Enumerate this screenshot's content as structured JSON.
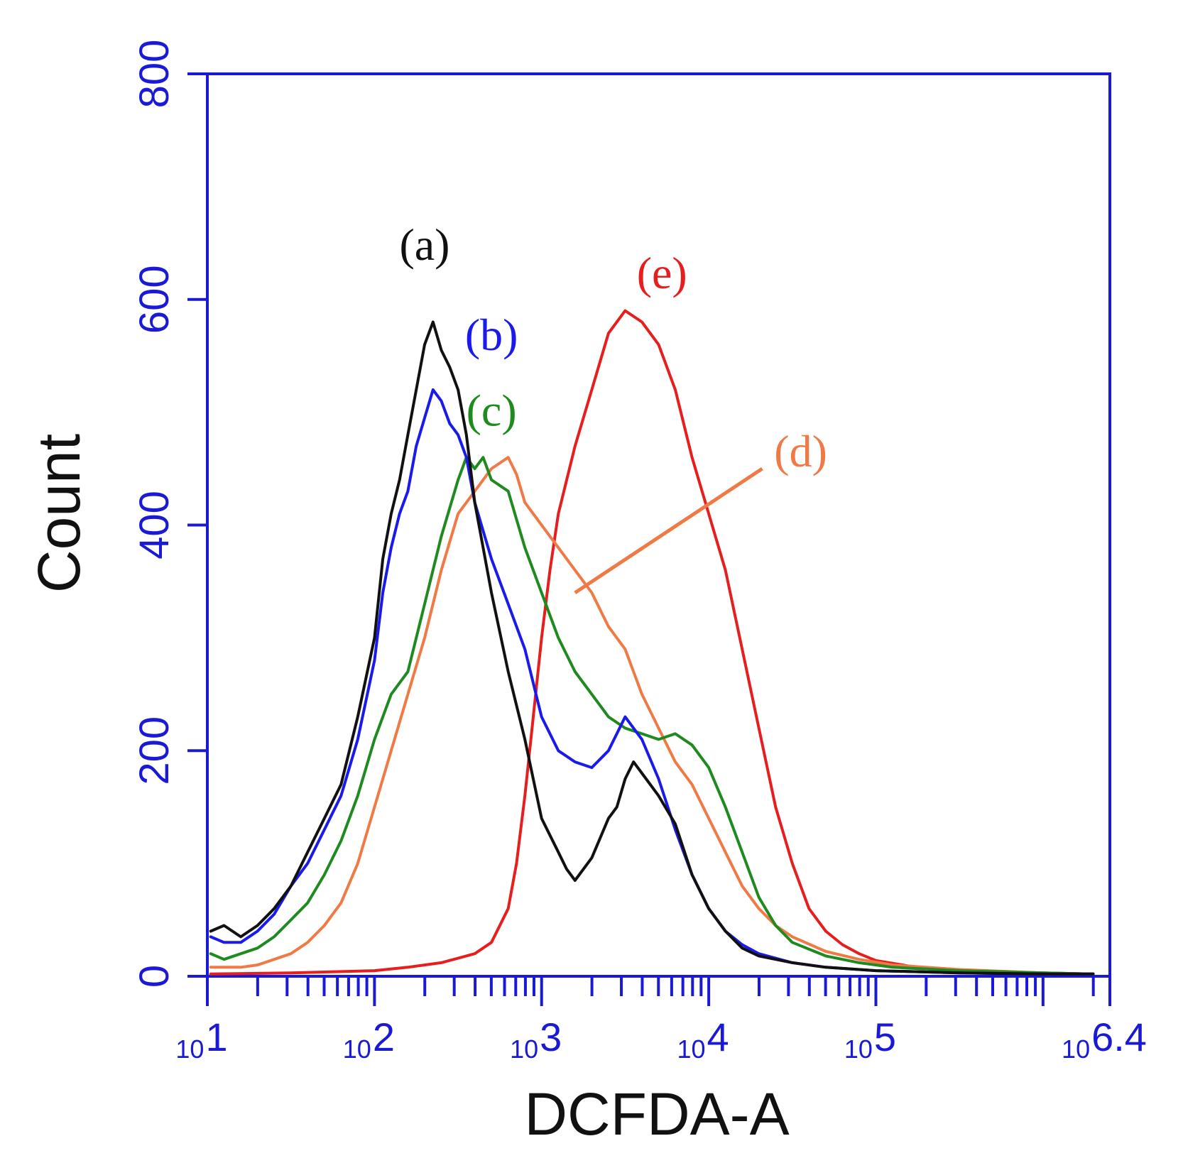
{
  "chart_data": {
    "type": "line",
    "title": "",
    "xlabel": "DCFDA-A",
    "ylabel": "Count",
    "x_scale": "log10",
    "xlim": [
      1,
      6.4
    ],
    "ylim": [
      0,
      800
    ],
    "y_ticks": [
      0,
      200,
      400,
      600,
      800
    ],
    "x_tick_labels": [
      {
        "exp": 1,
        "base": "10",
        "sup": "1"
      },
      {
        "exp": 2,
        "base": "10",
        "sup": "2"
      },
      {
        "exp": 3,
        "base": "10",
        "sup": "3"
      },
      {
        "exp": 4,
        "base": "10",
        "sup": "4"
      },
      {
        "exp": 5,
        "base": "10",
        "sup": "5"
      },
      {
        "exp": 6.4,
        "base": "10",
        "sup": "6.4"
      }
    ],
    "grid": false,
    "frame_color": "#1a1ad6",
    "series": [
      {
        "name": "(a)",
        "color": "#111111",
        "label_pos": {
          "x": 2.3,
          "y": 635
        },
        "points": [
          [
            1.02,
            40
          ],
          [
            1.1,
            45
          ],
          [
            1.2,
            35
          ],
          [
            1.3,
            45
          ],
          [
            1.4,
            60
          ],
          [
            1.5,
            80
          ],
          [
            1.6,
            110
          ],
          [
            1.7,
            140
          ],
          [
            1.8,
            170
          ],
          [
            1.9,
            230
          ],
          [
            2.0,
            300
          ],
          [
            2.05,
            370
          ],
          [
            2.1,
            410
          ],
          [
            2.15,
            440
          ],
          [
            2.2,
            480
          ],
          [
            2.25,
            520
          ],
          [
            2.3,
            560
          ],
          [
            2.35,
            580
          ],
          [
            2.4,
            555
          ],
          [
            2.45,
            540
          ],
          [
            2.5,
            520
          ],
          [
            2.55,
            480
          ],
          [
            2.6,
            420
          ],
          [
            2.7,
            340
          ],
          [
            2.8,
            270
          ],
          [
            2.9,
            210
          ],
          [
            3.0,
            140
          ],
          [
            3.1,
            110
          ],
          [
            3.15,
            95
          ],
          [
            3.2,
            85
          ],
          [
            3.3,
            105
          ],
          [
            3.4,
            140
          ],
          [
            3.45,
            150
          ],
          [
            3.5,
            175
          ],
          [
            3.55,
            190
          ],
          [
            3.6,
            180
          ],
          [
            3.7,
            160
          ],
          [
            3.8,
            135
          ],
          [
            3.9,
            90
          ],
          [
            4.0,
            60
          ],
          [
            4.1,
            40
          ],
          [
            4.2,
            25
          ],
          [
            4.3,
            18
          ],
          [
            4.5,
            12
          ],
          [
            4.7,
            8
          ],
          [
            5.0,
            5
          ],
          [
            5.5,
            3
          ],
          [
            6.0,
            2
          ],
          [
            6.3,
            2
          ]
        ]
      },
      {
        "name": "(b)",
        "color": "#1a1aeb",
        "label_pos": {
          "x": 2.7,
          "y": 555
        },
        "points": [
          [
            1.02,
            35
          ],
          [
            1.1,
            30
          ],
          [
            1.2,
            30
          ],
          [
            1.3,
            40
          ],
          [
            1.4,
            55
          ],
          [
            1.5,
            80
          ],
          [
            1.6,
            100
          ],
          [
            1.7,
            130
          ],
          [
            1.8,
            160
          ],
          [
            1.9,
            210
          ],
          [
            2.0,
            280
          ],
          [
            2.05,
            340
          ],
          [
            2.1,
            380
          ],
          [
            2.15,
            410
          ],
          [
            2.2,
            430
          ],
          [
            2.25,
            470
          ],
          [
            2.3,
            495
          ],
          [
            2.35,
            520
          ],
          [
            2.4,
            510
          ],
          [
            2.45,
            490
          ],
          [
            2.5,
            480
          ],
          [
            2.55,
            460
          ],
          [
            2.6,
            420
          ],
          [
            2.7,
            370
          ],
          [
            2.8,
            330
          ],
          [
            2.9,
            290
          ],
          [
            3.0,
            230
          ],
          [
            3.1,
            200
          ],
          [
            3.2,
            190
          ],
          [
            3.3,
            185
          ],
          [
            3.4,
            200
          ],
          [
            3.5,
            230
          ],
          [
            3.6,
            210
          ],
          [
            3.7,
            175
          ],
          [
            3.8,
            130
          ],
          [
            3.9,
            90
          ],
          [
            4.0,
            60
          ],
          [
            4.1,
            40
          ],
          [
            4.2,
            28
          ],
          [
            4.3,
            20
          ],
          [
            4.5,
            12
          ],
          [
            4.7,
            8
          ],
          [
            5.0,
            5
          ],
          [
            5.5,
            3
          ],
          [
            6.0,
            2
          ],
          [
            6.3,
            2
          ]
        ]
      },
      {
        "name": "(c)",
        "color": "#1f8a1f",
        "label_pos": {
          "x": 2.7,
          "y": 488
        },
        "points": [
          [
            1.02,
            20
          ],
          [
            1.1,
            15
          ],
          [
            1.2,
            20
          ],
          [
            1.3,
            25
          ],
          [
            1.4,
            35
          ],
          [
            1.5,
            50
          ],
          [
            1.6,
            65
          ],
          [
            1.7,
            90
          ],
          [
            1.8,
            120
          ],
          [
            1.9,
            160
          ],
          [
            2.0,
            210
          ],
          [
            2.1,
            250
          ],
          [
            2.2,
            270
          ],
          [
            2.3,
            330
          ],
          [
            2.4,
            390
          ],
          [
            2.5,
            440
          ],
          [
            2.55,
            460
          ],
          [
            2.6,
            450
          ],
          [
            2.65,
            460
          ],
          [
            2.7,
            440
          ],
          [
            2.8,
            430
          ],
          [
            2.9,
            380
          ],
          [
            3.0,
            340
          ],
          [
            3.1,
            300
          ],
          [
            3.2,
            270
          ],
          [
            3.3,
            250
          ],
          [
            3.4,
            230
          ],
          [
            3.5,
            220
          ],
          [
            3.6,
            215
          ],
          [
            3.7,
            210
          ],
          [
            3.8,
            215
          ],
          [
            3.9,
            205
          ],
          [
            4.0,
            185
          ],
          [
            4.1,
            150
          ],
          [
            4.2,
            110
          ],
          [
            4.3,
            70
          ],
          [
            4.4,
            45
          ],
          [
            4.5,
            30
          ],
          [
            4.7,
            18
          ],
          [
            4.9,
            12
          ],
          [
            5.1,
            8
          ],
          [
            5.5,
            5
          ],
          [
            6.0,
            3
          ],
          [
            6.3,
            2
          ]
        ]
      },
      {
        "name": "(d)",
        "color": "#f07a45",
        "label_pos": {
          "x": 4.55,
          "y": 452
        },
        "leader": [
          [
            3.2,
            340
          ],
          [
            4.32,
            450
          ]
        ],
        "points": [
          [
            1.02,
            8
          ],
          [
            1.2,
            8
          ],
          [
            1.3,
            10
          ],
          [
            1.4,
            15
          ],
          [
            1.5,
            20
          ],
          [
            1.6,
            30
          ],
          [
            1.7,
            45
          ],
          [
            1.8,
            65
          ],
          [
            1.9,
            100
          ],
          [
            2.0,
            150
          ],
          [
            2.1,
            200
          ],
          [
            2.2,
            250
          ],
          [
            2.3,
            300
          ],
          [
            2.4,
            360
          ],
          [
            2.5,
            410
          ],
          [
            2.6,
            430
          ],
          [
            2.7,
            450
          ],
          [
            2.8,
            460
          ],
          [
            2.85,
            445
          ],
          [
            2.9,
            420
          ],
          [
            3.0,
            400
          ],
          [
            3.05,
            390
          ],
          [
            3.1,
            380
          ],
          [
            3.2,
            360
          ],
          [
            3.3,
            340
          ],
          [
            3.4,
            310
          ],
          [
            3.5,
            290
          ],
          [
            3.6,
            250
          ],
          [
            3.7,
            220
          ],
          [
            3.8,
            190
          ],
          [
            3.9,
            170
          ],
          [
            4.0,
            140
          ],
          [
            4.1,
            110
          ],
          [
            4.2,
            80
          ],
          [
            4.3,
            60
          ],
          [
            4.4,
            45
          ],
          [
            4.5,
            35
          ],
          [
            4.7,
            22
          ],
          [
            4.9,
            15
          ],
          [
            5.1,
            10
          ],
          [
            5.5,
            6
          ],
          [
            6.0,
            3
          ],
          [
            6.3,
            2
          ]
        ]
      },
      {
        "name": "(e)",
        "color": "#e61e1e",
        "label_pos": {
          "x": 3.72,
          "y": 610
        },
        "points": [
          [
            1.02,
            2
          ],
          [
            1.5,
            3
          ],
          [
            2.0,
            5
          ],
          [
            2.2,
            8
          ],
          [
            2.4,
            12
          ],
          [
            2.6,
            20
          ],
          [
            2.7,
            30
          ],
          [
            2.8,
            60
          ],
          [
            2.85,
            100
          ],
          [
            2.9,
            160
          ],
          [
            2.95,
            230
          ],
          [
            3.0,
            300
          ],
          [
            3.05,
            360
          ],
          [
            3.1,
            410
          ],
          [
            3.2,
            470
          ],
          [
            3.3,
            520
          ],
          [
            3.4,
            570
          ],
          [
            3.5,
            590
          ],
          [
            3.6,
            580
          ],
          [
            3.7,
            560
          ],
          [
            3.8,
            520
          ],
          [
            3.9,
            460
          ],
          [
            4.0,
            410
          ],
          [
            4.1,
            360
          ],
          [
            4.2,
            290
          ],
          [
            4.3,
            220
          ],
          [
            4.4,
            150
          ],
          [
            4.5,
            100
          ],
          [
            4.6,
            60
          ],
          [
            4.7,
            40
          ],
          [
            4.8,
            28
          ],
          [
            4.9,
            20
          ],
          [
            5.0,
            14
          ],
          [
            5.2,
            9
          ],
          [
            5.5,
            5
          ],
          [
            6.0,
            3
          ],
          [
            6.3,
            2
          ]
        ]
      }
    ]
  }
}
